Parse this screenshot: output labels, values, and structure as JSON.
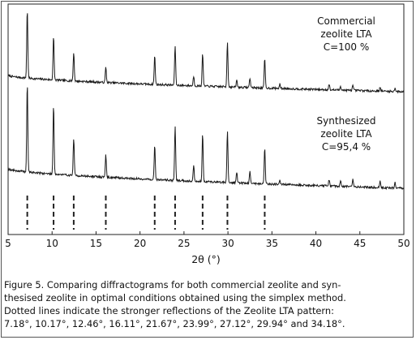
{
  "chart_data": {
    "type": "line",
    "xlabel": "2θ (°)",
    "xlim": [
      5,
      50
    ],
    "xticks": [
      5,
      10,
      15,
      20,
      25,
      30,
      35,
      40,
      45,
      50
    ],
    "series": [
      {
        "label_lines": [
          "Commercial",
          "zeolite LTA",
          "C=100 %"
        ],
        "peaks": [
          [
            7.18,
            1.0
          ],
          [
            10.17,
            0.63
          ],
          [
            12.46,
            0.42
          ],
          [
            16.11,
            0.22
          ],
          [
            21.67,
            0.42
          ],
          [
            23.99,
            0.58
          ],
          [
            26.1,
            0.14
          ],
          [
            27.12,
            0.48
          ],
          [
            29.94,
            0.66
          ],
          [
            31.0,
            0.1
          ],
          [
            32.5,
            0.14
          ],
          [
            34.18,
            0.43
          ],
          [
            35.9,
            0.06
          ],
          [
            41.5,
            0.08
          ],
          [
            42.8,
            0.06
          ],
          [
            44.2,
            0.07
          ],
          [
            47.3,
            0.06
          ],
          [
            49.0,
            0.05
          ]
        ]
      },
      {
        "label_lines": [
          "Synthesized",
          "zeolite LTA",
          "C=95,4 %"
        ],
        "peaks": [
          [
            7.18,
            1.0
          ],
          [
            10.17,
            0.78
          ],
          [
            12.46,
            0.42
          ],
          [
            16.11,
            0.25
          ],
          [
            21.67,
            0.38
          ],
          [
            23.99,
            0.6
          ],
          [
            26.1,
            0.18
          ],
          [
            27.12,
            0.54
          ],
          [
            29.94,
            0.58
          ],
          [
            31.0,
            0.12
          ],
          [
            32.5,
            0.13
          ],
          [
            34.18,
            0.4
          ],
          [
            35.9,
            0.05
          ],
          [
            41.5,
            0.07
          ],
          [
            42.8,
            0.06
          ],
          [
            44.2,
            0.08
          ],
          [
            47.3,
            0.07
          ],
          [
            49.0,
            0.06
          ]
        ]
      }
    ],
    "reference_reflections": [
      7.18,
      10.17,
      12.46,
      16.11,
      21.67,
      23.99,
      27.12,
      29.94,
      34.18
    ]
  },
  "caption": {
    "line1": "Figure 5. Comparing diffractograms for both commercial zeolite and syn-",
    "line2": "thesised zeolite in optimal conditions obtained using the simplex method.",
    "line3": "Dotted lines indicate the stronger reflections of the Zeolite LTA pattern:",
    "line4": "7.18°, 10.17°, 12.46°, 16.11°, 21.67°, 23.99°, 27.12°, 29.94° and 34.18°."
  }
}
